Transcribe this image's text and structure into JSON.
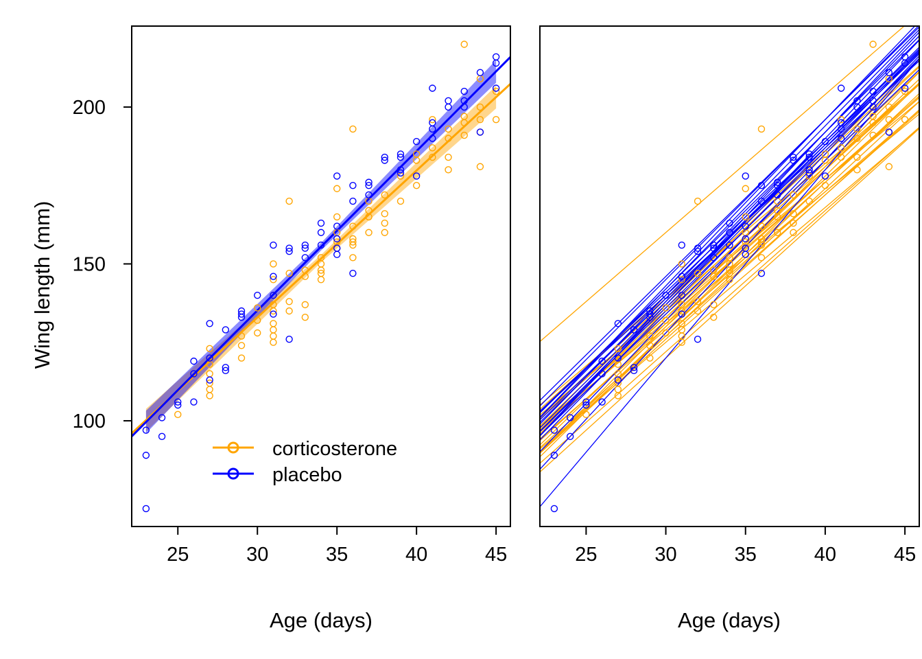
{
  "chart_data": [
    {
      "type": "scatter",
      "panel": "left",
      "xlabel": "Age (days)",
      "ylabel": "Wing length (mm)",
      "xlim": [
        22.1,
        45.9
      ],
      "ylim": [
        66.3,
        225.8
      ],
      "xticks": [
        25,
        30,
        35,
        40,
        45
      ],
      "yticks": [
        100,
        150,
        200
      ],
      "grid": false,
      "legend": {
        "placement": "bottom-left",
        "entries": [
          "corticosterone",
          "placebo"
        ]
      },
      "colors": {
        "corticosterone": "#FFA500",
        "placebo": "#0000FF"
      },
      "series": [
        {
          "name": "corticosterone",
          "color": "#FFA500",
          "points": [
            [
              25,
              102
            ],
            [
              27,
              123
            ],
            [
              27,
              118
            ],
            [
              27,
              115
            ],
            [
              27,
              112
            ],
            [
              27,
              110
            ],
            [
              27,
              108
            ],
            [
              29,
              124
            ],
            [
              29,
              120
            ],
            [
              29,
              127
            ],
            [
              30,
              128
            ],
            [
              30,
              136
            ],
            [
              30,
              132
            ],
            [
              31,
              150
            ],
            [
              31,
              145
            ],
            [
              31,
              140
            ],
            [
              31,
              137
            ],
            [
              31,
              135
            ],
            [
              31,
              131
            ],
            [
              31,
              129
            ],
            [
              31,
              127
            ],
            [
              31,
              125
            ],
            [
              32,
              170
            ],
            [
              32,
              147
            ],
            [
              32,
              138
            ],
            [
              32,
              135
            ],
            [
              33,
              146
            ],
            [
              33,
              137
            ],
            [
              33,
              133
            ],
            [
              33,
              148
            ],
            [
              34,
              148
            ],
            [
              34,
              147
            ],
            [
              34,
              145
            ],
            [
              34,
              150
            ],
            [
              34,
              152
            ],
            [
              35,
              174
            ],
            [
              35,
              165
            ],
            [
              35,
              160
            ],
            [
              35,
              157
            ],
            [
              35,
              155
            ],
            [
              36,
              193
            ],
            [
              36,
              162
            ],
            [
              36,
              158
            ],
            [
              36,
              156
            ],
            [
              36,
              152
            ],
            [
              36,
              157
            ],
            [
              37,
              165
            ],
            [
              37,
              167
            ],
            [
              37,
              160
            ],
            [
              37,
              170
            ],
            [
              38,
              166
            ],
            [
              38,
              163
            ],
            [
              38,
              160
            ],
            [
              38,
              172
            ],
            [
              39,
              170
            ],
            [
              39,
              178
            ],
            [
              40,
              175
            ],
            [
              40,
              183
            ],
            [
              40,
              185
            ],
            [
              41,
              196
            ],
            [
              41,
              187
            ],
            [
              41,
              184
            ],
            [
              42,
              193
            ],
            [
              42,
              190
            ],
            [
              42,
              184
            ],
            [
              42,
              180
            ],
            [
              43,
              220
            ],
            [
              43,
              197
            ],
            [
              43,
              195
            ],
            [
              43,
              191
            ],
            [
              44,
              200
            ],
            [
              44,
              196
            ],
            [
              44,
              192
            ],
            [
              44,
              181
            ],
            [
              44,
              209
            ],
            [
              45,
              196
            ],
            [
              45,
              205
            ]
          ],
          "fit": {
            "slope": 4.68,
            "intercept_at_23": 100.2,
            "x_range": [
              23,
              45
            ]
          }
        },
        {
          "name": "placebo",
          "color": "#0000FF",
          "points": [
            [
              23,
              97
            ],
            [
              23,
              89
            ],
            [
              23,
              72
            ],
            [
              24,
              101
            ],
            [
              24,
              95
            ],
            [
              25,
              106
            ],
            [
              25,
              105
            ],
            [
              26,
              119
            ],
            [
              26,
              115
            ],
            [
              26,
              106
            ],
            [
              27,
              131
            ],
            [
              27,
              120
            ],
            [
              27,
              113
            ],
            [
              28,
              129
            ],
            [
              28,
              117
            ],
            [
              28,
              116
            ],
            [
              29,
              135
            ],
            [
              29,
              134
            ],
            [
              29,
              133
            ],
            [
              30,
              140
            ],
            [
              31,
              156
            ],
            [
              31,
              146
            ],
            [
              31,
              140
            ],
            [
              31,
              134
            ],
            [
              32,
              155
            ],
            [
              32,
              154
            ],
            [
              32,
              126
            ],
            [
              33,
              156
            ],
            [
              33,
              155
            ],
            [
              33,
              152
            ],
            [
              34,
              163
            ],
            [
              34,
              160
            ],
            [
              34,
              156
            ],
            [
              35,
              178
            ],
            [
              35,
              162
            ],
            [
              35,
              158
            ],
            [
              35,
              155
            ],
            [
              35,
              153
            ],
            [
              36,
              175
            ],
            [
              36,
              170
            ],
            [
              36,
              147
            ],
            [
              37,
              176
            ],
            [
              37,
              175
            ],
            [
              37,
              172
            ],
            [
              38,
              184
            ],
            [
              38,
              183
            ],
            [
              39,
              185
            ],
            [
              39,
              184
            ],
            [
              39,
              180
            ],
            [
              39,
              179
            ],
            [
              40,
              189
            ],
            [
              40,
              178
            ],
            [
              41,
              206
            ],
            [
              41,
              195
            ],
            [
              41,
              193
            ],
            [
              41,
              190
            ],
            [
              42,
              202
            ],
            [
              42,
              200
            ],
            [
              43,
              205
            ],
            [
              43,
              202
            ],
            [
              43,
              200
            ],
            [
              44,
              211
            ],
            [
              44,
              192
            ],
            [
              45,
              216
            ],
            [
              45,
              214
            ],
            [
              45,
              206
            ]
          ],
          "fit": {
            "slope": 5.08,
            "intercept_at_23": 99.6,
            "x_range": [
              23,
              45
            ]
          }
        }
      ]
    },
    {
      "type": "line",
      "panel": "right",
      "xlabel": "Age (days)",
      "xlim": [
        22.1,
        45.9
      ],
      "ylim": [
        66.3,
        225.8
      ],
      "xticks": [
        25,
        30,
        35,
        40,
        45
      ],
      "grid": false,
      "line_format": "[wing length at age 30, slope per day]",
      "series": [
        {
          "name": "corticosterone",
          "color": "#FFA500",
          "lines": [
            [
              160,
              4.4
            ],
            [
              140,
              4.6
            ],
            [
              138,
              4.7
            ],
            [
              136,
              4.5
            ],
            [
              135,
              4.8
            ],
            [
              134,
              4.6
            ],
            [
              133,
              4.7
            ],
            [
              132,
              4.5
            ],
            [
              131,
              4.9
            ],
            [
              130,
              4.6
            ],
            [
              129,
              4.4
            ],
            [
              128,
              4.8
            ],
            [
              127,
              4.5
            ],
            [
              126,
              4.6
            ],
            [
              125,
              4.3
            ],
            [
              137,
              4.9
            ],
            [
              139,
              4.3
            ],
            [
              131,
              4.2
            ],
            [
              128,
              5.0
            ],
            [
              133,
              4.4
            ],
            [
              122,
              4.5
            ],
            [
              130,
              5.1
            ],
            [
              135,
              4.2
            ],
            [
              127,
              4.7
            ],
            [
              120,
              4.6
            ]
          ]
        },
        {
          "name": "placebo",
          "color": "#0000FF",
          "lines": [
            [
              145,
              5.1
            ],
            [
              142,
              5.0
            ],
            [
              140,
              5.2
            ],
            [
              139,
              4.9
            ],
            [
              138,
              5.1
            ],
            [
              137,
              5.3
            ],
            [
              136,
              5.0
            ],
            [
              141,
              4.8
            ],
            [
              143,
              5.3
            ],
            [
              135,
              5.2
            ],
            [
              128,
              5.5
            ],
            [
              120,
              6.0
            ],
            [
              138,
              5.4
            ],
            [
              140,
              4.7
            ],
            [
              146,
              5.0
            ],
            [
              134,
              4.9
            ],
            [
              139,
              5.0
            ],
            [
              137,
              5.1
            ],
            [
              142,
              5.2
            ],
            [
              132,
              5.3
            ]
          ]
        }
      ]
    }
  ]
}
